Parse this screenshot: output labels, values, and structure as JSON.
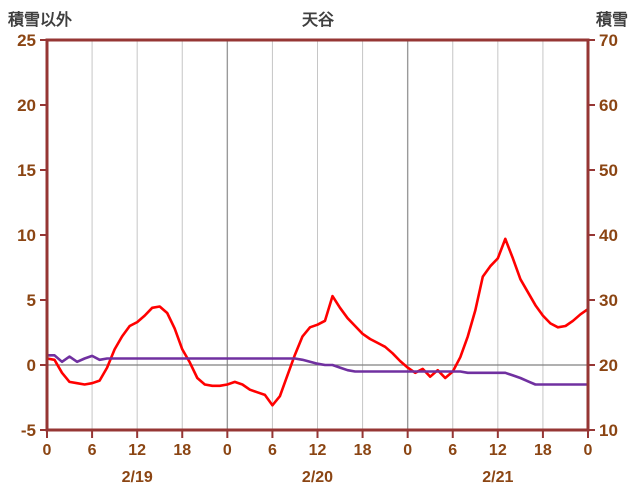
{
  "chart_data": {
    "type": "line",
    "title": "天谷",
    "left_axis": {
      "label": "積雪以外",
      "min": -5,
      "max": 25,
      "ticks": [
        25,
        20,
        15,
        10,
        5,
        0,
        -5
      ]
    },
    "right_axis": {
      "label": "積雪",
      "min": 10,
      "max": 70,
      "ticks": [
        70,
        60,
        50,
        40,
        30,
        20,
        10
      ]
    },
    "x_axis": {
      "hours_total": 72,
      "tick_interval": 6,
      "tick_labels": [
        "0",
        "6",
        "12",
        "18",
        "0",
        "6",
        "12",
        "18",
        "0",
        "6",
        "12",
        "18",
        "0"
      ],
      "dates": [
        "2/19",
        "2/20",
        "2/21"
      ]
    },
    "grid": {
      "vertical_minor_every_hours": 6,
      "vertical_major_every_hours": 24,
      "horizontal": false,
      "zero_line": true
    },
    "colors": {
      "border": "#963634",
      "axis_text": "#8b4513",
      "title_text": "#3f3f3f",
      "grid_minor": "#c6c6c6",
      "grid_major": "#9a9a9a",
      "zero_line": "#808080",
      "series_red": "#ff0000",
      "series_purple": "#7030a0"
    },
    "series": [
      {
        "name": "積雪以外",
        "axis": "left",
        "color": "#ff0000",
        "values": [
          0.5,
          0.4,
          -0.6,
          -1.3,
          -1.4,
          -1.5,
          -1.4,
          -1.2,
          -0.2,
          1.2,
          2.2,
          3.0,
          3.3,
          3.8,
          4.4,
          4.5,
          4.0,
          2.8,
          1.2,
          0.2,
          -1.0,
          -1.5,
          -1.6,
          -1.6,
          -1.5,
          -1.3,
          -1.5,
          -1.9,
          -2.1,
          -2.3,
          -3.1,
          -2.4,
          -0.8,
          0.8,
          2.2,
          2.9,
          3.1,
          3.4,
          5.3,
          4.4,
          3.6,
          3.0,
          2.4,
          2.0,
          1.7,
          1.4,
          0.9,
          0.3,
          -0.2,
          -0.6,
          -0.3,
          -0.9,
          -0.4,
          -1.0,
          -0.5,
          0.6,
          2.2,
          4.2,
          6.8,
          7.6,
          8.2,
          9.7,
          8.2,
          6.6,
          5.6,
          4.6,
          3.8,
          3.2,
          2.9,
          3.0,
          3.4,
          3.9,
          4.3
        ]
      },
      {
        "name": "積雪",
        "axis": "right",
        "color": "#7030a0",
        "values": [
          21.5,
          21.5,
          20.5,
          21.3,
          20.5,
          21.0,
          21.4,
          20.8,
          21.0,
          21.0,
          21.0,
          21.0,
          21.0,
          21.0,
          21.0,
          21.0,
          21.0,
          21.0,
          21.0,
          21.0,
          21.0,
          21.0,
          21.0,
          21.0,
          21.0,
          21.0,
          21.0,
          21.0,
          21.0,
          21.0,
          21.0,
          21.0,
          21.0,
          21.0,
          20.8,
          20.5,
          20.2,
          20.0,
          20.0,
          19.6,
          19.2,
          19.0,
          19.0,
          19.0,
          19.0,
          19.0,
          19.0,
          19.0,
          19.0,
          19.0,
          19.0,
          19.0,
          19.0,
          19.0,
          19.0,
          19.0,
          18.8,
          18.8,
          18.8,
          18.8,
          18.8,
          18.8,
          18.4,
          18.0,
          17.5,
          17.0,
          17.0,
          17.0,
          17.0,
          17.0,
          17.0,
          17.0,
          17.0
        ]
      }
    ]
  }
}
